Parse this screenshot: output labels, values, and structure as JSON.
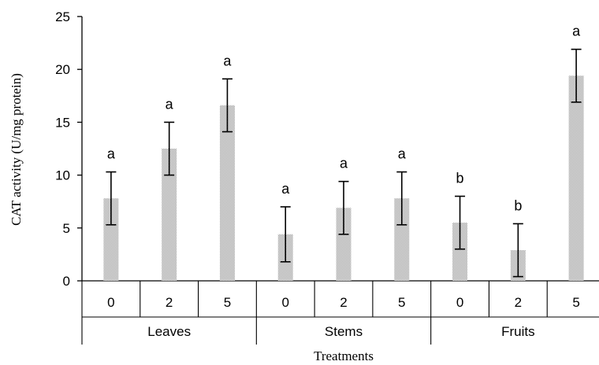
{
  "chart_data": {
    "type": "bar",
    "title": "",
    "xlabel": "Treatments",
    "ylabel": "CAT activity (U/mg protein)",
    "ylim": [
      0,
      25
    ],
    "yticks": [
      0,
      5,
      10,
      15,
      20,
      25
    ],
    "grid": false,
    "legend": "none",
    "bar_color": "#c8c8c8",
    "groups": [
      {
        "name": "Leaves",
        "categories": [
          "0",
          "2",
          "5"
        ],
        "values": [
          7.8,
          12.5,
          16.6
        ],
        "errors": [
          2.5,
          2.5,
          2.5
        ],
        "labels": [
          "a",
          "a",
          "a"
        ]
      },
      {
        "name": "Stems",
        "categories": [
          "0",
          "2",
          "5"
        ],
        "values": [
          4.4,
          6.9,
          7.8
        ],
        "errors": [
          2.6,
          2.5,
          2.5
        ],
        "labels": [
          "a",
          "a",
          "a"
        ]
      },
      {
        "name": "Fruits",
        "categories": [
          "0",
          "2",
          "5"
        ],
        "values": [
          5.5,
          2.9,
          19.4
        ],
        "errors": [
          2.5,
          2.5,
          2.5
        ],
        "labels": [
          "b",
          "b",
          "a"
        ]
      }
    ]
  }
}
